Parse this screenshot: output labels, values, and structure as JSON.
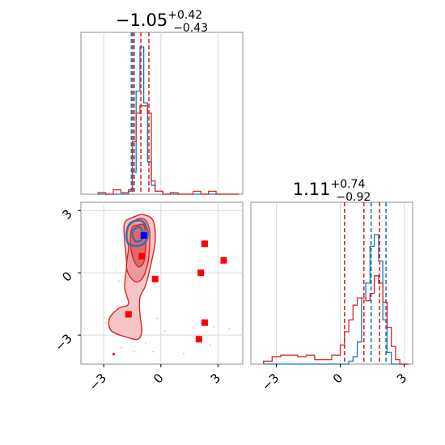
{
  "chart_data": {
    "type": "corner",
    "panels": [
      {
        "id": "hist-param-1",
        "type": "histogram",
        "title": {
          "main": "−1.05",
          "sup": "+0.42",
          "sub": "−0.43"
        },
        "xlim": [
          -4.2,
          4.3
        ],
        "bin_edges": [
          -3.3,
          -2.9,
          -2.5,
          -2.1,
          -1.7,
          -1.5,
          -1.3,
          -1.1,
          -0.9,
          -0.7,
          -0.5,
          -0.3,
          0.1,
          0.5,
          0.9,
          1.3,
          1.7,
          2.1,
          2.5,
          2.9,
          3.3,
          3.7,
          4.1
        ],
        "series": [
          {
            "name": "",
            "color": "#1f77b4",
            "counts": [
              0.0,
              0.0,
              0.0,
              0.0,
              0.02,
              0.15,
              0.7,
              1.0,
              0.62,
              0.22,
              0.06,
              0.02,
              0.0,
              0.0,
              0.0,
              0.0,
              0.0,
              0.0,
              0.0,
              0.0,
              0.0,
              0.0
            ],
            "quantile_lines": [
              -1.55,
              -1.4
            ]
          },
          {
            "name": "",
            "color": "#d62728",
            "counts": [
              0.01,
              0.0,
              0.03,
              0.01,
              0.03,
              0.36,
              0.55,
              0.6,
              0.6,
              0.55,
              0.09,
              0.02,
              0.0,
              0.01,
              0.0,
              0.0,
              0.02,
              0.0,
              0.02,
              0.0,
              0.0,
              0.0
            ],
            "quantile_lines": [
              -1.48,
              -1.05,
              -0.63
            ]
          }
        ]
      },
      {
        "id": "hist-param-2",
        "type": "histogram",
        "title": {
          "main": "1.11",
          "sup": "+0.74",
          "sub": "−0.92"
        },
        "xlim": [
          -4.2,
          3.4
        ],
        "xticks": [
          -3,
          0,
          3
        ],
        "bin_edges": [
          -3.6,
          -3.2,
          -2.8,
          -2.4,
          -2.0,
          -1.6,
          -1.2,
          -0.8,
          -0.4,
          0.0,
          0.2,
          0.4,
          0.6,
          0.8,
          1.0,
          1.2,
          1.4,
          1.6,
          1.8,
          2.0,
          2.2,
          2.4,
          2.6,
          2.8,
          3.0,
          3.2
        ],
        "series": [
          {
            "name": "",
            "color": "#1f77b4",
            "counts": [
              0.0,
              0.0,
              0.0,
              0.0,
              0.0,
              0.0,
              0.0,
              0.0,
              0.0,
              0.0,
              0.0,
              0.02,
              0.05,
              0.15,
              0.45,
              0.55,
              0.8,
              0.88,
              0.7,
              0.3,
              0.08,
              0.0,
              0.0,
              0.0,
              0.0
            ],
            "quantile_lines": [
              1.45,
              2.15
            ]
          },
          {
            "name": "",
            "color": "#d62728",
            "counts": [
              0.02,
              0.05,
              0.06,
              0.06,
              0.05,
              0.06,
              0.03,
              0.03,
              0.06,
              0.13,
              0.22,
              0.3,
              0.4,
              0.45,
              0.45,
              0.43,
              0.48,
              0.6,
              0.55,
              0.42,
              0.25,
              0.12,
              0.03,
              0.0,
              0.0
            ],
            "quantile_lines": [
              0.2,
              1.11,
              1.85
            ]
          }
        ]
      },
      {
        "id": "joint-2d",
        "type": "contour",
        "xlim": [
          -4.2,
          4.3
        ],
        "ylim": [
          -4.4,
          3.4
        ],
        "xticks": [
          -3,
          0,
          3
        ],
        "yticks": [
          -3,
          0,
          3
        ],
        "red_contour_levels": [
          {
            "fill": "#f6c5c6",
            "points": [
              [
                -1.4,
                2.7
              ],
              [
                -0.9,
                2.8
              ],
              [
                -0.4,
                2.5
              ],
              [
                -0.3,
                1.5
              ],
              [
                -0.5,
                0.5
              ],
              [
                -0.8,
                -0.6
              ],
              [
                -1.1,
                -1.2
              ],
              [
                -1.1,
                -2.0
              ],
              [
                -1.0,
                -2.8
              ],
              [
                -1.2,
                -3.2
              ],
              [
                -1.8,
                -3.1
              ],
              [
                -2.6,
                -2.8
              ],
              [
                -2.7,
                -2.2
              ],
              [
                -2.2,
                -1.7
              ],
              [
                -1.7,
                -1.5
              ],
              [
                -1.9,
                -0.7
              ],
              [
                -1.8,
                0.4
              ],
              [
                -1.9,
                1.5
              ],
              [
                -1.9,
                2.4
              ]
            ]
          },
          {
            "fill": "#ee9a9c",
            "points": [
              [
                -1.4,
                2.5
              ],
              [
                -0.9,
                2.6
              ],
              [
                -0.6,
                2.1
              ],
              [
                -0.6,
                1.2
              ],
              [
                -0.7,
                0.4
              ],
              [
                -1.0,
                -0.3
              ],
              [
                -1.4,
                -0.4
              ],
              [
                -1.8,
                0.2
              ],
              [
                -1.7,
                1.2
              ],
              [
                -1.8,
                2.0
              ]
            ]
          },
          {
            "fill": "#e06869",
            "points": [
              [
                -1.2,
                2.3
              ],
              [
                -0.9,
                2.3
              ],
              [
                -0.8,
                1.8
              ],
              [
                -0.8,
                1.2
              ],
              [
                -0.9,
                0.5
              ],
              [
                -1.2,
                0.3
              ],
              [
                -1.5,
                0.8
              ],
              [
                -1.6,
                1.6
              ],
              [
                -1.5,
                2.2
              ]
            ]
          }
        ],
        "blue_contour_levels": [
          {
            "points": [
              [
                -1.6,
                2.4
              ],
              [
                -1.0,
                2.5
              ],
              [
                -0.7,
                2.0
              ],
              [
                -0.8,
                1.5
              ],
              [
                -1.2,
                1.3
              ],
              [
                -1.7,
                1.4
              ],
              [
                -1.8,
                1.9
              ]
            ]
          },
          {
            "points": [
              [
                -1.4,
                2.1
              ],
              [
                -1.1,
                2.2
              ],
              [
                -0.9,
                1.8
              ],
              [
                -1.0,
                1.6
              ],
              [
                -1.3,
                1.5
              ],
              [
                -1.5,
                1.8
              ]
            ]
          }
        ],
        "red_markers": [
          [
            2.3,
            1.4
          ],
          [
            3.3,
            0.6
          ],
          [
            -1.0,
            0.8
          ],
          [
            -0.3,
            -0.3
          ],
          [
            -1.7,
            -2.0
          ],
          [
            2.1,
            0.0
          ],
          [
            2.3,
            -2.4
          ],
          [
            2.0,
            -3.2
          ]
        ],
        "blue_marker": [
          -0.9,
          1.8
        ],
        "scatter_points": [
          [
            -2.3,
            -1.6
          ],
          [
            -2.6,
            -2.1
          ],
          [
            -0.8,
            -3.4
          ],
          [
            -0.4,
            -3.8
          ],
          [
            2.8,
            -2.6
          ],
          [
            -2.1,
            -3.6
          ],
          [
            0.2,
            -2.8
          ],
          [
            -2.9,
            -2.4
          ],
          [
            2.6,
            -3.5
          ],
          [
            -0.2,
            -2.2
          ],
          [
            1.2,
            -3.9
          ],
          [
            3.6,
            -2.7
          ],
          [
            -1.4,
            -3.8
          ],
          [
            -2.2,
            -0.4
          ]
        ]
      }
    ]
  }
}
